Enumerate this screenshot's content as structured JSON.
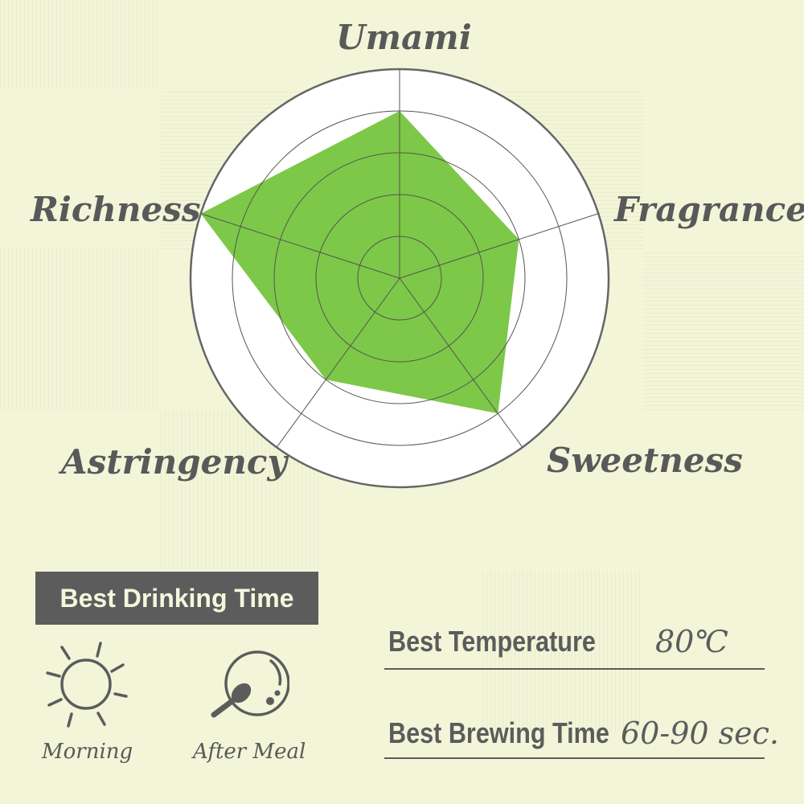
{
  "chart_data": {
    "type": "radar",
    "axes": [
      "Umami",
      "Fragrance",
      "Sweetness",
      "Astringency",
      "Richness"
    ],
    "values": [
      4,
      3,
      4,
      3,
      5
    ],
    "range": [
      0,
      5
    ],
    "rings": 5,
    "fill_color": "#7dc848",
    "grid": true
  },
  "drinking_time": {
    "title": "Best Drinking Time",
    "items": [
      {
        "icon": "sun-icon",
        "label": "Morning"
      },
      {
        "icon": "plate-spoon-icon",
        "label": "After Meal"
      }
    ]
  },
  "info": {
    "temperature_label": "Best Temperature",
    "temperature_value": "80℃",
    "brewing_label": "Best Brewing Time",
    "brewing_value": "60-90 sec."
  }
}
